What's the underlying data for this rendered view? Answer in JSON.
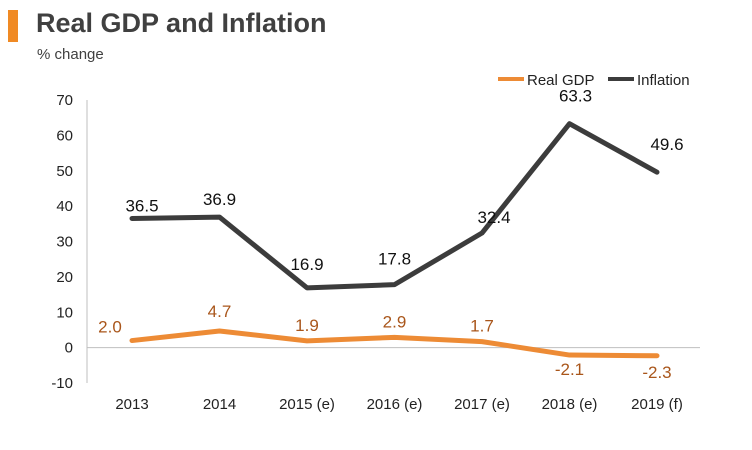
{
  "header": {
    "title": "Real GDP and Inflation",
    "subtitle": "% change"
  },
  "colors": {
    "real_gdp": "#ed8b35",
    "inflation": "#3c3c3c",
    "gdp_label": "#a9561b",
    "accent": "#f08a24"
  },
  "chart_data": {
    "type": "line",
    "categories": [
      "2013",
      "2014",
      "2015 (e)",
      "2016 (e)",
      "2017 (e)",
      "2018 (e)",
      "2019 (f)"
    ],
    "series": [
      {
        "name": "Real GDP",
        "values": [
          2.0,
          4.7,
          1.9,
          2.9,
          1.7,
          -2.1,
          -2.3
        ],
        "labels": [
          "2.0",
          "4.7",
          "1.9",
          "2.9",
          "1.7",
          "-2.1",
          "-2.3"
        ]
      },
      {
        "name": "Inflation",
        "values": [
          36.5,
          36.9,
          16.9,
          17.8,
          32.4,
          63.3,
          49.6
        ],
        "labels": [
          "36.5",
          "36.9",
          "16.9",
          "17.8",
          "32.4",
          "63.3",
          "49.6"
        ]
      }
    ],
    "ylim": [
      -10,
      70
    ],
    "yticks": [
      "70",
      "60",
      "50",
      "40",
      "30",
      "20",
      "10",
      "0",
      "-10"
    ],
    "legend_position": "top-right",
    "grid": false
  }
}
